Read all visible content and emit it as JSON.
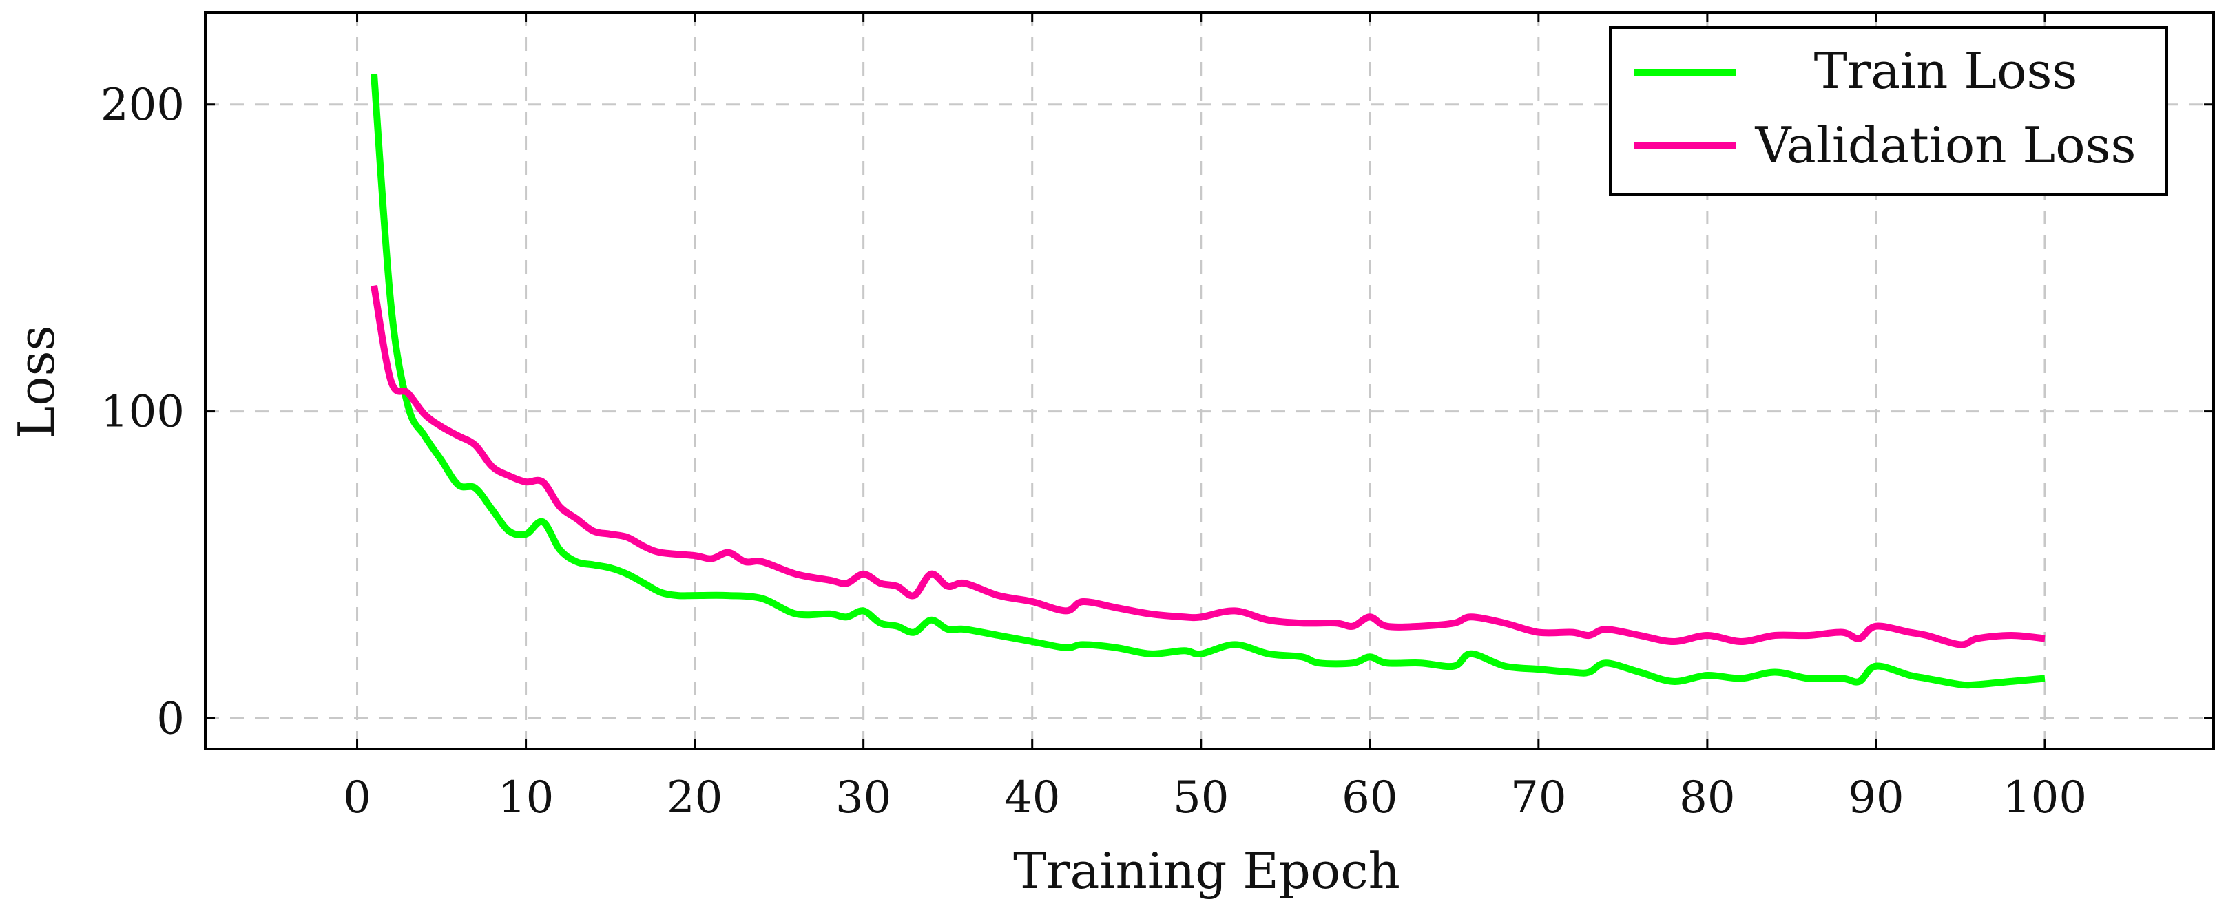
{
  "chart_data": {
    "type": "line",
    "xlabel": "Training Epoch",
    "ylabel": "Loss",
    "xlim": [
      -9,
      110
    ],
    "ylim": [
      -10,
      230
    ],
    "xticks": [
      0,
      10,
      20,
      30,
      40,
      50,
      60,
      70,
      80,
      90,
      100
    ],
    "yticks": [
      0,
      100,
      200
    ],
    "grid": true,
    "legend_position": "top-right",
    "series": [
      {
        "name": "Train Loss",
        "color": "#00ff00",
        "x": [
          1,
          2,
          3,
          4,
          5,
          6,
          7,
          8,
          9,
          10,
          11,
          12,
          13,
          14,
          15,
          16,
          17,
          18,
          19,
          20,
          22,
          24,
          26,
          28,
          29,
          30,
          31,
          32,
          33,
          34,
          35,
          36,
          38,
          40,
          42,
          43,
          45,
          47,
          49,
          50,
          52,
          54,
          56,
          57,
          59,
          60,
          61,
          63,
          65,
          66,
          68,
          70,
          72,
          73,
          74,
          76,
          78,
          80,
          82,
          84,
          86,
          88,
          89,
          90,
          92,
          93,
          95,
          96,
          98,
          100
        ],
        "values": [
          210,
          135,
          102,
          92,
          84,
          76,
          75,
          68,
          61,
          60,
          64,
          55,
          51,
          50,
          49,
          47,
          44,
          41,
          40,
          40,
          40,
          39,
          34,
          34,
          33,
          35,
          31,
          30,
          28,
          32,
          29,
          29,
          27,
          25,
          23,
          24,
          23,
          21,
          22,
          21,
          24,
          21,
          20,
          18,
          18,
          20,
          18,
          18,
          17,
          21,
          17,
          16,
          15,
          15,
          18,
          15,
          12,
          14,
          13,
          15,
          13,
          13,
          12,
          17,
          14,
          13,
          11,
          11,
          12,
          13
        ]
      },
      {
        "name": "Validation Loss",
        "color": "#ff0099",
        "x": [
          1,
          2,
          3,
          4,
          5,
          6,
          7,
          8,
          9,
          10,
          11,
          12,
          13,
          14,
          15,
          16,
          17,
          18,
          20,
          21,
          22,
          23,
          24,
          26,
          28,
          29,
          30,
          31,
          32,
          33,
          34,
          35,
          36,
          38,
          40,
          42,
          43,
          45,
          47,
          49,
          50,
          52,
          54,
          56,
          58,
          59,
          60,
          61,
          63,
          65,
          66,
          68,
          70,
          72,
          73,
          74,
          76,
          78,
          80,
          82,
          84,
          86,
          88,
          89,
          90,
          92,
          93,
          95,
          96,
          98,
          100
        ],
        "values": [
          141,
          110,
          106,
          99,
          95,
          92,
          89,
          82,
          79,
          77,
          77,
          69,
          65,
          61,
          60,
          59,
          56,
          54,
          53,
          52,
          54,
          51,
          51,
          47,
          45,
          44,
          47,
          44,
          43,
          40,
          47,
          43,
          44,
          40,
          38,
          35,
          38,
          36,
          34,
          33,
          33,
          35,
          32,
          31,
          31,
          30,
          33,
          30,
          30,
          31,
          33,
          31,
          28,
          28,
          27,
          29,
          27,
          25,
          27,
          25,
          27,
          27,
          28,
          26,
          30,
          28,
          27,
          24,
          26,
          27,
          26
        ]
      }
    ]
  }
}
